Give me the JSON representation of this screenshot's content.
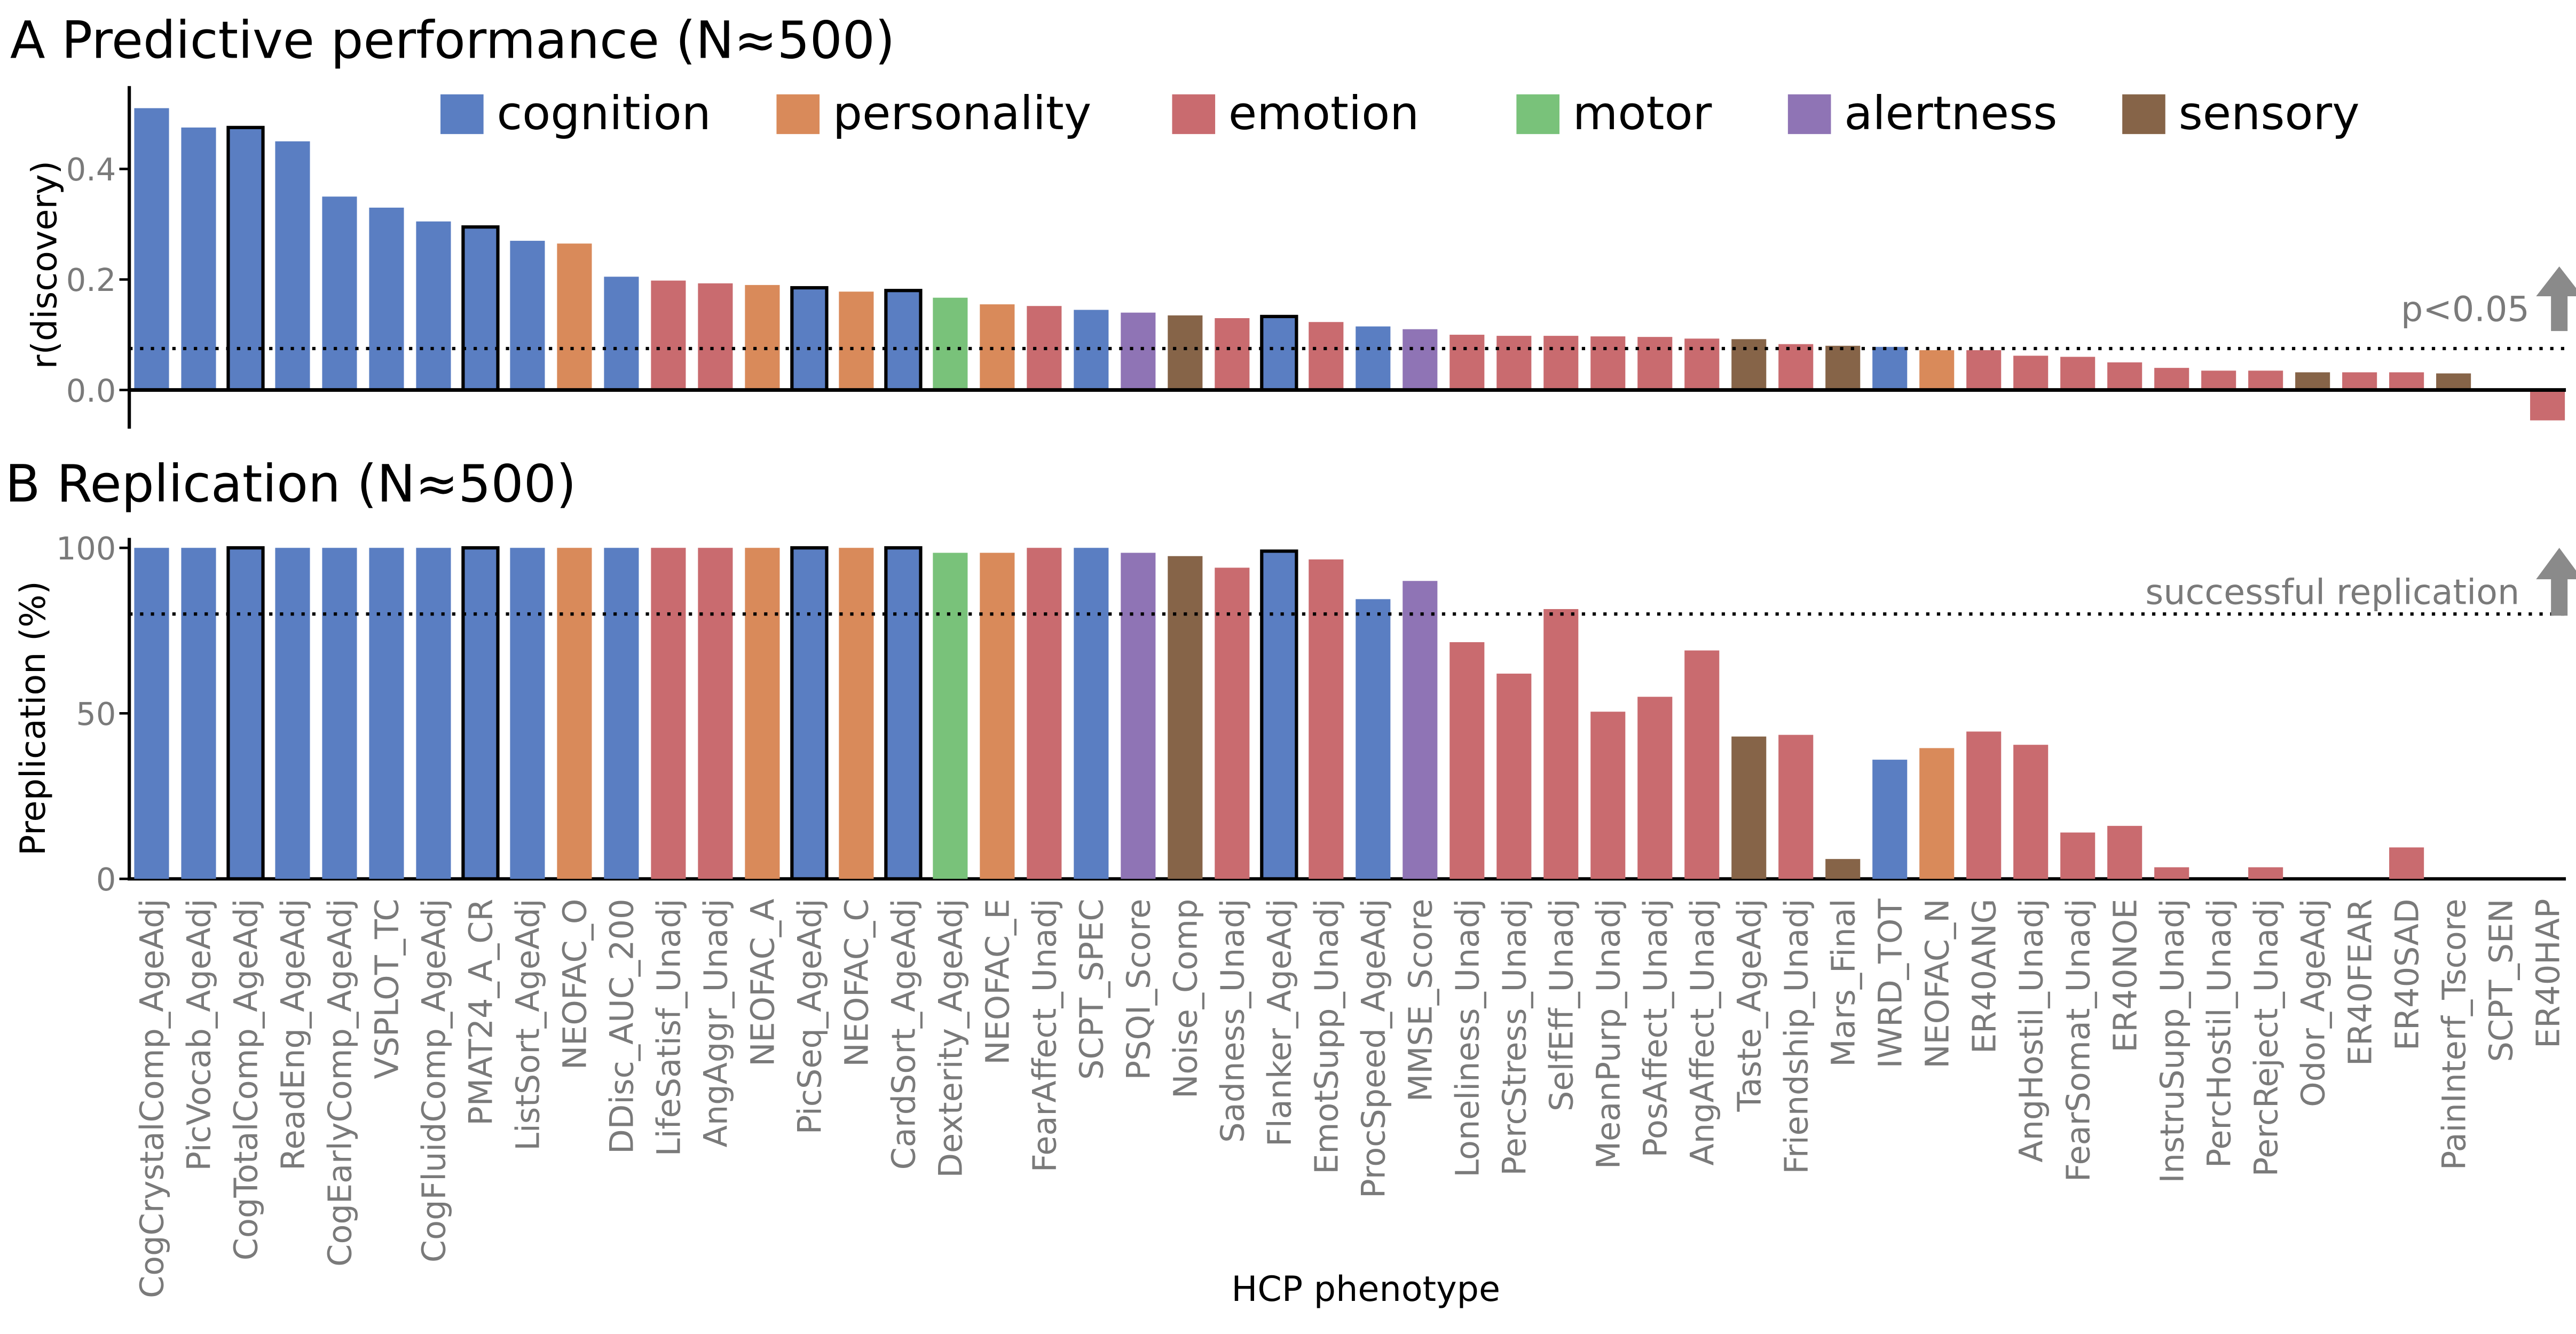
{
  "categories_legend": [
    {
      "name": "cognition",
      "color": "#5a7ec2"
    },
    {
      "name": "personality",
      "color": "#d98a5a"
    },
    {
      "name": "emotion",
      "color": "#c96b6f"
    },
    {
      "name": "motor",
      "color": "#79c27a"
    },
    {
      "name": "alertness",
      "color": "#8f74b5"
    },
    {
      "name": "sensory",
      "color": "#866448"
    }
  ],
  "chart_data": [
    {
      "type": "bar",
      "title": "A Predictive performance (N≈500)",
      "ylabel": "r(discovery)",
      "ylim": [
        -0.07,
        0.55
      ],
      "yticks": [
        0.0,
        0.2,
        0.4
      ],
      "ytick_labels": [
        "0.0",
        "0.2",
        "0.4"
      ],
      "threshold": 0.075,
      "threshold_label": "p<0.05",
      "categories": [
        "CogCrystalComp_AgeAdj",
        "PicVocab_AgeAdj",
        "CogTotalComp_AgeAdj",
        "ReadEng_AgeAdj",
        "CogEarlyComp_AgeAdj",
        "VSPLOT_TC",
        "CogFluidComp_AgeAdj",
        "PMAT24_A_CR",
        "ListSort_AgeAdj",
        "NEOFAC_O",
        "DDisc_AUC_200",
        "LifeSatisf_Unadj",
        "AngAggr_Unadj",
        "NEOFAC_A",
        "PicSeq_AgeAdj",
        "NEOFAC_C",
        "CardSort_AgeAdj",
        "Dexterity_AgeAdj",
        "NEOFAC_E",
        "FearAffect_Unadj",
        "SCPT_SPEC",
        "PSQI_Score",
        "Noise_Comp",
        "Sadness_Unadj",
        "Flanker_AgeAdj",
        "EmotSupp_Unadj",
        "ProcSpeed_AgeAdj",
        "MMSE_Score",
        "Loneliness_Unadj",
        "PercStress_Unadj",
        "SelfEff_Unadj",
        "MeanPurp_Unadj",
        "PosAffect_Unadj",
        "AngAffect_Unadj",
        "Taste_AgeAdj",
        "Friendship_Unadj",
        "Mars_Final",
        "IWRD_TOT",
        "NEOFAC_N",
        "ER40ANG",
        "AngHostil_Unadj",
        "FearSomat_Unadj",
        "ER40NOE",
        "InstruSupp_Unadj",
        "PercHostil_Unadj",
        "PercReject_Unadj",
        "Odor_AgeAdj",
        "ER40FEAR",
        "ER40SAD",
        "PainInterf_Tscore",
        "SCPT_SEN",
        "ER40HAP"
      ],
      "groups": [
        "cognition",
        "cognition",
        "cognition",
        "cognition",
        "cognition",
        "cognition",
        "cognition",
        "cognition",
        "cognition",
        "personality",
        "cognition",
        "emotion",
        "emotion",
        "personality",
        "cognition",
        "personality",
        "cognition",
        "motor",
        "personality",
        "emotion",
        "cognition",
        "alertness",
        "sensory",
        "emotion",
        "cognition",
        "emotion",
        "cognition",
        "alertness",
        "emotion",
        "emotion",
        "emotion",
        "emotion",
        "emotion",
        "emotion",
        "sensory",
        "emotion",
        "sensory",
        "cognition",
        "personality",
        "emotion",
        "emotion",
        "emotion",
        "emotion",
        "emotion",
        "emotion",
        "emotion",
        "sensory",
        "emotion",
        "emotion",
        "sensory",
        "emotion",
        "emotion"
      ],
      "highlighted": [
        "CogTotalComp_AgeAdj",
        "PMAT24_A_CR",
        "PicSeq_AgeAdj",
        "CardSort_AgeAdj",
        "Flanker_AgeAdj"
      ],
      "values": [
        0.51,
        0.475,
        0.475,
        0.45,
        0.35,
        0.33,
        0.305,
        0.295,
        0.27,
        0.265,
        0.205,
        0.198,
        0.193,
        0.19,
        0.185,
        0.178,
        0.18,
        0.167,
        0.155,
        0.152,
        0.145,
        0.14,
        0.135,
        0.13,
        0.133,
        0.123,
        0.115,
        0.11,
        0.1,
        0.098,
        0.098,
        0.097,
        0.096,
        0.093,
        0.092,
        0.083,
        0.08,
        0.078,
        0.072,
        0.072,
        0.062,
        0.06,
        0.05,
        0.04,
        0.035,
        0.035,
        0.032,
        0.032,
        0.032,
        0.03,
        0.0,
        -0.055
      ]
    },
    {
      "type": "bar",
      "title": "B Replication (N≈500)",
      "ylabel": "Preplication (%)",
      "xlabel": "HCP phenotype",
      "ylim": [
        0,
        103
      ],
      "yticks": [
        0,
        50,
        100
      ],
      "ytick_labels": [
        "0",
        "50",
        "100"
      ],
      "threshold": 80,
      "threshold_label": "successful replication",
      "values": [
        100,
        100,
        100,
        100,
        100,
        100,
        100,
        100,
        100,
        100,
        100,
        100,
        100,
        100,
        100,
        100,
        100,
        98.5,
        98.5,
        100,
        100,
        98.5,
        97.5,
        94,
        99,
        96.5,
        84.5,
        90,
        71.5,
        62,
        81.5,
        50.5,
        55,
        69,
        43,
        43.5,
        6,
        36,
        39.5,
        44.5,
        40.5,
        14,
        16,
        3.5,
        0,
        3.5,
        0,
        0,
        9.5,
        0,
        0,
        0
      ]
    }
  ]
}
